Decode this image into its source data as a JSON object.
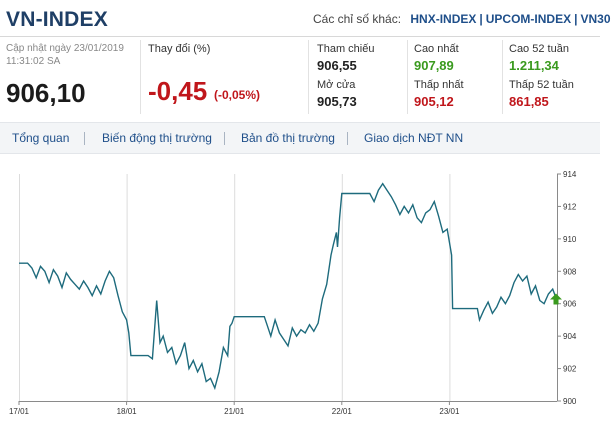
{
  "header": {
    "title": "VN-INDEX",
    "other_label": "Các chỉ số khác:",
    "other_links": [
      "HNX-INDEX",
      "UPCOM-INDEX",
      "VN30"
    ]
  },
  "summary": {
    "updated_label": "Cập nhật ngày 23/01/2019",
    "updated_time": "11:31:02 SA",
    "price": "906,10",
    "change_label": "Thay đổi (%)",
    "change": "-0,45",
    "change_pct": "(-0,05%)"
  },
  "stats": {
    "ref_label": "Tham chiếu",
    "ref_value": "906,55",
    "open_label": "Mở cửa",
    "open_value": "905,73",
    "high_label": "Cao nhất",
    "high_value": "907,89",
    "low_label": "Thấp nhất",
    "low_value": "905,12",
    "high52_label": "Cao 52 tuần",
    "high52_value": "1.211,34",
    "low52_label": "Thấp 52 tuần",
    "low52_value": "861,85"
  },
  "tabs": [
    "Tổng quan",
    "Biến động thị trường",
    "Bản đồ thị trường",
    "Giao dịch NĐT NN"
  ],
  "colors": {
    "line": "#1e6b7d",
    "up": "#3a9a1e",
    "down": "#c0161b",
    "title": "#1f3f66"
  },
  "chart_data": {
    "type": "line",
    "x_tick_labels": [
      "17/01",
      "18/01",
      "21/01",
      "22/01",
      "23/01"
    ],
    "ylim": [
      900,
      914
    ],
    "y_ticks": [
      900,
      902,
      904,
      906,
      908,
      910,
      912,
      914
    ],
    "grid": "vertical at day boundaries",
    "last_marker": "up-arrow",
    "series": [
      {
        "values": [
          [
            0.0,
            908.5
          ],
          [
            0.08,
            908.5
          ],
          [
            0.12,
            908.2
          ],
          [
            0.16,
            907.6
          ],
          [
            0.2,
            908.3
          ],
          [
            0.24,
            908.0
          ],
          [
            0.28,
            907.3
          ],
          [
            0.32,
            908.1
          ],
          [
            0.36,
            907.7
          ],
          [
            0.4,
            907.0
          ],
          [
            0.44,
            907.9
          ],
          [
            0.48,
            907.5
          ],
          [
            0.52,
            907.2
          ],
          [
            0.56,
            906.9
          ],
          [
            0.6,
            907.4
          ],
          [
            0.64,
            907.0
          ],
          [
            0.68,
            906.5
          ],
          [
            0.72,
            907.1
          ],
          [
            0.76,
            906.6
          ],
          [
            0.8,
            907.4
          ],
          [
            0.84,
            908.0
          ],
          [
            0.88,
            907.6
          ],
          [
            0.92,
            906.5
          ],
          [
            0.96,
            905.5
          ],
          [
            1.0,
            905.0
          ],
          [
            1.02,
            904.2
          ],
          [
            1.04,
            902.8
          ],
          [
            1.06,
            902.8
          ],
          [
            1.2,
            902.8
          ],
          [
            1.24,
            902.6
          ],
          [
            1.28,
            906.2
          ],
          [
            1.31,
            903.6
          ],
          [
            1.34,
            904.0
          ],
          [
            1.38,
            903.0
          ],
          [
            1.42,
            903.3
          ],
          [
            1.46,
            902.3
          ],
          [
            1.5,
            902.8
          ],
          [
            1.54,
            903.6
          ],
          [
            1.58,
            902.0
          ],
          [
            1.62,
            902.5
          ],
          [
            1.66,
            901.8
          ],
          [
            1.7,
            902.3
          ],
          [
            1.74,
            901.2
          ],
          [
            1.78,
            901.4
          ],
          [
            1.82,
            900.8
          ],
          [
            1.86,
            901.8
          ],
          [
            1.9,
            903.3
          ],
          [
            1.94,
            902.8
          ],
          [
            1.96,
            904.6
          ],
          [
            1.98,
            904.8
          ],
          [
            2.0,
            905.2
          ],
          [
            2.1,
            905.2
          ],
          [
            2.2,
            905.2
          ],
          [
            2.28,
            905.2
          ],
          [
            2.3,
            904.8
          ],
          [
            2.34,
            904.0
          ],
          [
            2.38,
            905.0
          ],
          [
            2.42,
            904.2
          ],
          [
            2.46,
            903.8
          ],
          [
            2.5,
            903.4
          ],
          [
            2.54,
            904.5
          ],
          [
            2.58,
            904.0
          ],
          [
            2.62,
            904.4
          ],
          [
            2.66,
            904.2
          ],
          [
            2.7,
            904.7
          ],
          [
            2.74,
            904.3
          ],
          [
            2.78,
            904.8
          ],
          [
            2.82,
            906.3
          ],
          [
            2.86,
            907.2
          ],
          [
            2.9,
            909.0
          ],
          [
            2.92,
            909.6
          ],
          [
            2.95,
            910.4
          ],
          [
            2.96,
            909.5
          ],
          [
            2.98,
            911.3
          ],
          [
            3.0,
            912.8
          ],
          [
            3.1,
            912.8
          ],
          [
            3.2,
            912.8
          ],
          [
            3.26,
            912.8
          ],
          [
            3.3,
            912.3
          ],
          [
            3.34,
            913.0
          ],
          [
            3.38,
            913.4
          ],
          [
            3.42,
            913.0
          ],
          [
            3.46,
            912.6
          ],
          [
            3.5,
            912.1
          ],
          [
            3.54,
            911.5
          ],
          [
            3.58,
            912.0
          ],
          [
            3.62,
            911.6
          ],
          [
            3.66,
            912.1
          ],
          [
            3.7,
            911.3
          ],
          [
            3.74,
            911.0
          ],
          [
            3.78,
            911.6
          ],
          [
            3.82,
            911.8
          ],
          [
            3.86,
            912.3
          ],
          [
            3.9,
            911.4
          ],
          [
            3.94,
            910.4
          ],
          [
            3.98,
            910.6
          ],
          [
            4.02,
            909.0
          ],
          [
            4.03,
            905.7
          ],
          [
            4.1,
            905.7
          ],
          [
            4.2,
            905.7
          ],
          [
            4.26,
            905.7
          ],
          [
            4.28,
            905.0
          ],
          [
            4.32,
            905.6
          ],
          [
            4.36,
            906.1
          ],
          [
            4.4,
            905.4
          ],
          [
            4.44,
            905.8
          ],
          [
            4.48,
            906.4
          ],
          [
            4.52,
            906.0
          ],
          [
            4.56,
            906.5
          ],
          [
            4.6,
            907.3
          ],
          [
            4.64,
            907.8
          ],
          [
            4.68,
            907.4
          ],
          [
            4.72,
            907.7
          ],
          [
            4.76,
            906.6
          ],
          [
            4.8,
            907.1
          ],
          [
            4.84,
            906.2
          ],
          [
            4.88,
            906.0
          ],
          [
            4.92,
            906.6
          ],
          [
            4.96,
            906.9
          ],
          [
            5.0,
            906.2
          ]
        ]
      }
    ]
  }
}
